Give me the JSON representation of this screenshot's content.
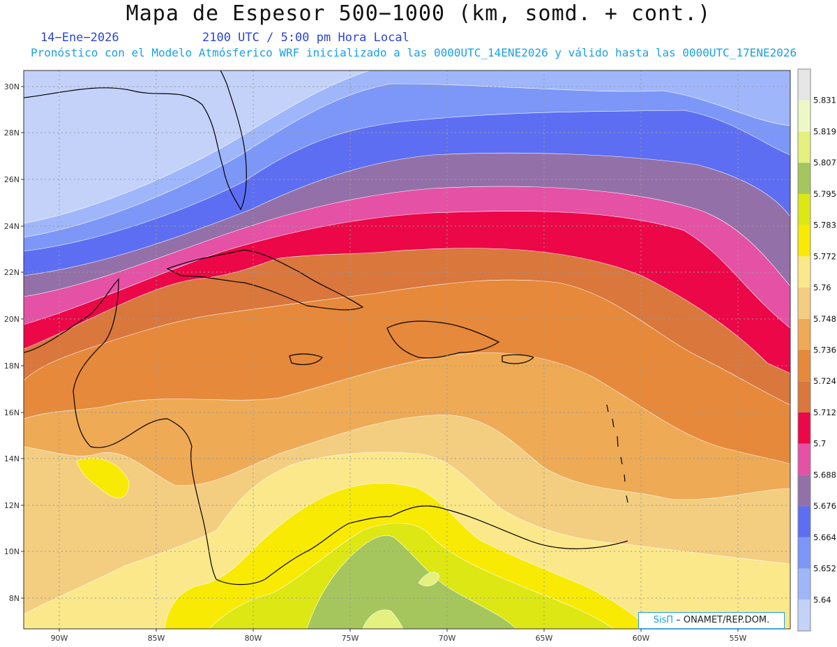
{
  "header": {
    "title": "Mapa de Espesor 500−1000 (km, somd. + cont.)",
    "date": "14−Ene−2026",
    "time": "2100 UTC / 5:00 pm Hora Local",
    "subtitle": "Pronóstico con el Modelo Atmósferico WRF inicializado a las 0000UTC_14ENE2026 y válido hasta las  0000UTC_17ENE2026"
  },
  "axes": {
    "lat_labels": [
      "30N",
      "28N",
      "26N",
      "24N",
      "22N",
      "20N",
      "18N",
      "16N",
      "14N",
      "12N",
      "10N",
      "8N"
    ],
    "lon_labels": [
      "90W",
      "85W",
      "80W",
      "75W",
      "70W",
      "65W",
      "60W",
      "55W"
    ]
  },
  "colorbar": {
    "levels": [
      "5.64",
      "5.652",
      "5.664",
      "5.676",
      "5.688",
      "5.7",
      "5.712",
      "5.724",
      "5.736",
      "5.748",
      "5.76",
      "5.772",
      "5.783",
      "5.795",
      "5.807",
      "5.819",
      "5.831"
    ],
    "colors": [
      "#c4d2fa",
      "#9fb6fb",
      "#7c97f7",
      "#5d6ef2",
      "#9470a9",
      "#e451a5",
      "#ec0748",
      "#d9773d",
      "#e6893a",
      "#eeaa55",
      "#f3cd80",
      "#fbe88a",
      "#f8ea02",
      "#dde714",
      "#a5c65c",
      "#e4f17e",
      "#eef8c6",
      "#e6e6e6"
    ]
  },
  "credit": {
    "brand": "SisΠ",
    "text": " – ONAMET/REP.DOM."
  }
}
